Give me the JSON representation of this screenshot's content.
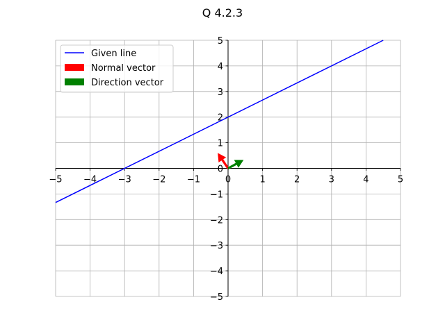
{
  "chart_data": {
    "type": "line",
    "title": "Q 4.2.3",
    "xlabel": "",
    "ylabel": "",
    "xlim": [
      -5,
      5
    ],
    "ylim": [
      -5,
      5
    ],
    "grid": true,
    "axes_through_origin": true,
    "x_ticks": [
      -5,
      -4,
      -3,
      -2,
      -1,
      0,
      1,
      2,
      3,
      4,
      5
    ],
    "y_ticks": [
      -5,
      -4,
      -3,
      -2,
      -1,
      0,
      1,
      2,
      3,
      4,
      5
    ],
    "x_tick_labels": [
      "−5",
      "−4",
      "−3",
      "−2",
      "−1",
      "0",
      "1",
      "2",
      "3",
      "4",
      "5"
    ],
    "y_tick_labels": [
      "−5",
      "−4",
      "−3",
      "−2",
      "−1",
      "0",
      "1",
      "2",
      "3",
      "4",
      "5"
    ],
    "legend_position": "top-left",
    "series": [
      {
        "name": "Given line",
        "kind": "line",
        "color": "#0000ff",
        "x": [
          -5,
          4.5
        ],
        "y": [
          -1.3333,
          5
        ]
      },
      {
        "name": "Normal vector",
        "kind": "arrow",
        "color": "#ff0000",
        "origin": [
          0,
          0
        ],
        "vector": [
          -0.3,
          0.6
        ]
      },
      {
        "name": "Direction vector",
        "kind": "arrow",
        "color": "#008000",
        "origin": [
          0,
          0
        ],
        "vector": [
          0.45,
          0.33
        ]
      }
    ]
  }
}
